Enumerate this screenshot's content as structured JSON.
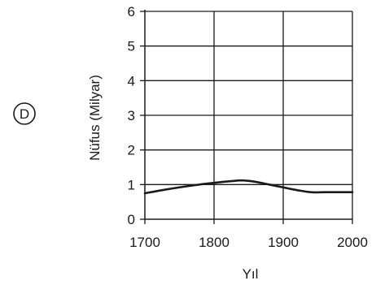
{
  "option_label": "D",
  "chart_data": {
    "type": "line",
    "xlabel": "Yıl",
    "ylabel": "Nüfus (Milyar)",
    "xlim": [
      1700,
      2000
    ],
    "ylim": [
      0,
      6
    ],
    "x_ticks": [
      1700,
      1800,
      1900,
      2000
    ],
    "y_ticks": [
      0,
      1,
      2,
      3,
      4,
      5,
      6
    ],
    "grid": true,
    "series": [
      {
        "x": [
          1700,
          1725,
          1750,
          1775,
          1800,
          1825,
          1840,
          1860,
          1880,
          1900,
          1920,
          1940,
          1960,
          1980,
          2000
        ],
        "values": [
          0.75,
          0.84,
          0.92,
          0.99,
          1.05,
          1.1,
          1.12,
          1.08,
          1.0,
          0.92,
          0.84,
          0.78,
          0.78,
          0.78,
          0.78
        ]
      }
    ]
  }
}
